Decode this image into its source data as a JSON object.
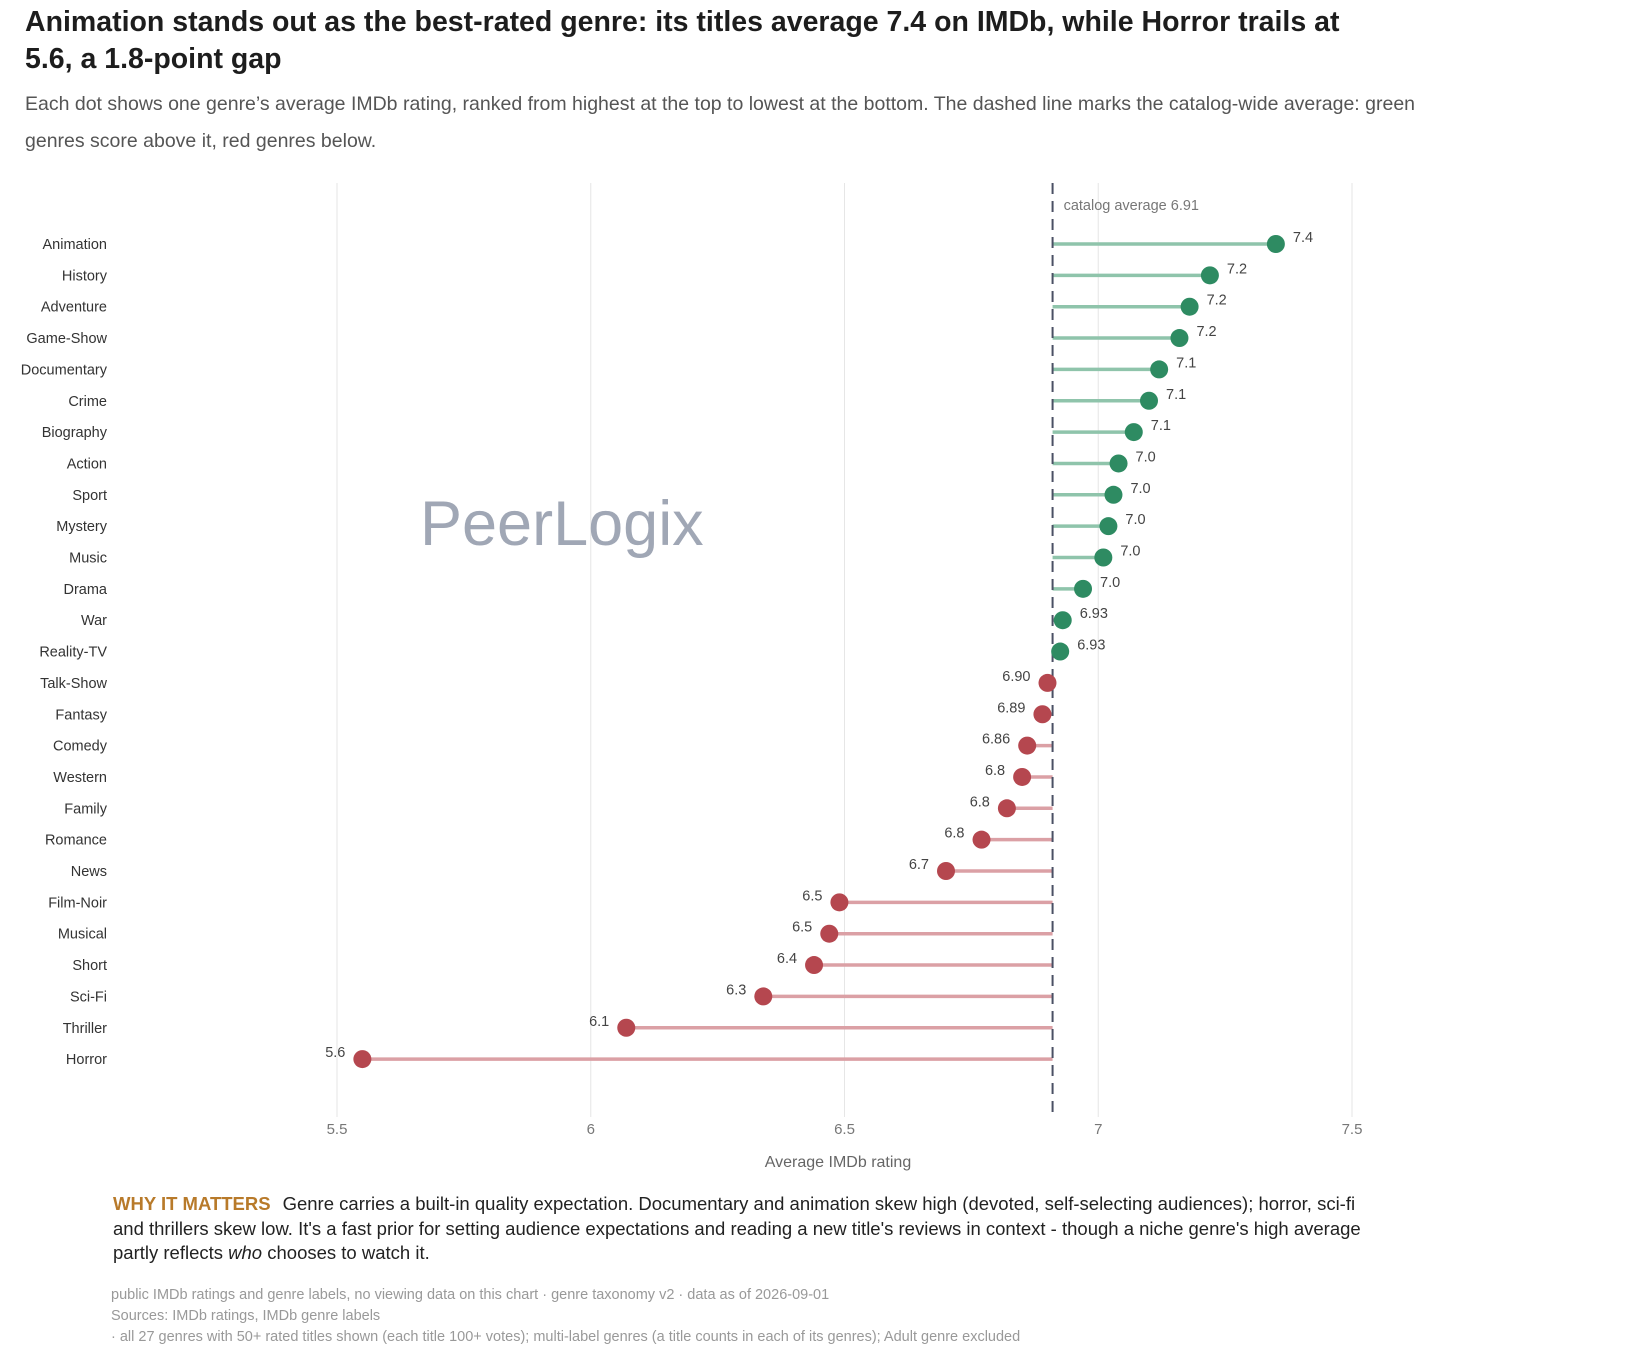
{
  "title": "Animation stands out as the best-rated genre: its titles average 7.4 on IMDb, while Horror trails at 5.6, a 1.8-point gap",
  "subtitle": "Each dot shows one genre’s average IMDb rating, ranked from highest at the top to lowest at the bottom. The dashed line marks the catalog-wide average: green genres score above it, red genres below.",
  "watermark": "PeerLogix",
  "colors": {
    "above": "#2e8b62",
    "above_line": "#8fc4ab",
    "below": "#b5474f",
    "below_line": "#dba0a5",
    "average_line": "#4a5064",
    "watermark": "#a0a7b5",
    "accent": "#b87a2a"
  },
  "chart_data": {
    "type": "lollipop",
    "xlabel": "Average IMDb rating",
    "xlim": [
      5.5,
      7.5
    ],
    "xticks": [
      "5.5",
      "6",
      "6.5",
      "7",
      "7.5"
    ],
    "grid": "vertical",
    "reference": {
      "value": 6.91,
      "label": "catalog average 6.91"
    },
    "points": [
      {
        "genre": "Animation",
        "value": 7.35,
        "label": "7.4"
      },
      {
        "genre": "History",
        "value": 7.22,
        "label": "7.2"
      },
      {
        "genre": "Adventure",
        "value": 7.18,
        "label": "7.2"
      },
      {
        "genre": "Game-Show",
        "value": 7.16,
        "label": "7.2"
      },
      {
        "genre": "Documentary",
        "value": 7.12,
        "label": "7.1"
      },
      {
        "genre": "Crime",
        "value": 7.1,
        "label": "7.1"
      },
      {
        "genre": "Biography",
        "value": 7.07,
        "label": "7.1"
      },
      {
        "genre": "Action",
        "value": 7.04,
        "label": "7.0"
      },
      {
        "genre": "Sport",
        "value": 7.03,
        "label": "7.0"
      },
      {
        "genre": "Mystery",
        "value": 7.02,
        "label": "7.0"
      },
      {
        "genre": "Music",
        "value": 7.01,
        "label": "7.0"
      },
      {
        "genre": "Drama",
        "value": 6.97,
        "label": "7.0"
      },
      {
        "genre": "War",
        "value": 6.93,
        "label": "6.93"
      },
      {
        "genre": "Reality-TV",
        "value": 6.925,
        "label": "6.93"
      },
      {
        "genre": "Talk-Show",
        "value": 6.9,
        "label": "6.90"
      },
      {
        "genre": "Fantasy",
        "value": 6.89,
        "label": "6.89"
      },
      {
        "genre": "Comedy",
        "value": 6.86,
        "label": "6.86"
      },
      {
        "genre": "Western",
        "value": 6.85,
        "label": "6.8"
      },
      {
        "genre": "Family",
        "value": 6.82,
        "label": "6.8"
      },
      {
        "genre": "Romance",
        "value": 6.77,
        "label": "6.8"
      },
      {
        "genre": "News",
        "value": 6.7,
        "label": "6.7"
      },
      {
        "genre": "Film-Noir",
        "value": 6.49,
        "label": "6.5"
      },
      {
        "genre": "Musical",
        "value": 6.47,
        "label": "6.5"
      },
      {
        "genre": "Short",
        "value": 6.44,
        "label": "6.4"
      },
      {
        "genre": "Sci-Fi",
        "value": 6.34,
        "label": "6.3"
      },
      {
        "genre": "Thriller",
        "value": 6.07,
        "label": "6.1"
      },
      {
        "genre": "Horror",
        "value": 5.55,
        "label": "5.6"
      }
    ]
  },
  "why": {
    "label": "WHY IT MATTERS",
    "text_before": "Genre carries a built-in quality expectation. Documentary and animation skew high (devoted, self-selecting audiences); horror, sci-fi and thrillers skew low. It's a fast prior for setting audience expectations and reading a new title's reviews in context - though a niche genre's high average partly reflects ",
    "emphasis": "who",
    "text_after": " chooses to watch it."
  },
  "footnotes": {
    "line1": "public IMDb ratings and genre labels, no viewing data on this chart · genre taxonomy v2 · data as of 2026-09-01",
    "line2": "Sources: IMDb ratings, IMDb genre labels",
    "line3": "· all 27 genres with 50+ rated titles shown (each title 100+ votes); multi-label genres (a title counts in each of its genres); Adult genre excluded"
  }
}
